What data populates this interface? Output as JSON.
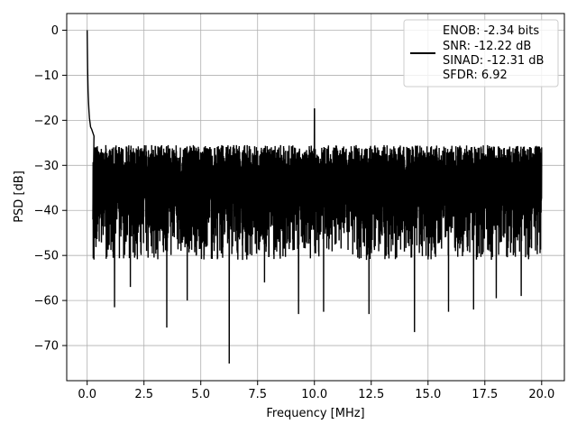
{
  "chart_data": {
    "type": "line",
    "xlabel": "Frequency [MHz]",
    "ylabel": "PSD [dB]",
    "xlim": [
      -0.9,
      21.0
    ],
    "ylim": [
      -77.8,
      3.7
    ],
    "xticks": [
      0.0,
      2.5,
      5.0,
      7.5,
      10.0,
      12.5,
      15.0,
      17.5,
      20.0
    ],
    "xtick_labels": [
      "0.0",
      "2.5",
      "5.0",
      "7.5",
      "10.0",
      "12.5",
      "15.0",
      "17.5",
      "20.0"
    ],
    "yticks": [
      0,
      -10,
      -20,
      -30,
      -40,
      -50,
      -60,
      -70
    ],
    "ytick_labels": [
      "0",
      "−10",
      "−20",
      "−30",
      "−40",
      "−50",
      "−60",
      "−70"
    ],
    "grid": true,
    "legend_position": "top-right",
    "legend_entries": [
      "ENOB: -2.34 bits",
      "SNR: -12.22 dB",
      "SINAD: -12.31 dB",
      "SFDR: 6.92"
    ],
    "line_color": "#000000",
    "series": [
      {
        "points_x": [
          0.0,
          0.02,
          0.04,
          0.06,
          0.08,
          0.1,
          0.15,
          0.2,
          0.3,
          0.5,
          10.0,
          20.0
        ],
        "points_y": [
          0.0,
          -8.5,
          -13.5,
          -16.0,
          -18.0,
          -19.5,
          -21.5,
          -22.0,
          -23.5,
          -24.0,
          -17.5,
          -26.0
        ],
        "noise_floor_top": -24.5,
        "noise_floor_median": -33.0,
        "deep_dips": [
          {
            "x": 0.2,
            "y": -42.0
          },
          {
            "x": 1.2,
            "y": -61.5
          },
          {
            "x": 1.9,
            "y": -57.0
          },
          {
            "x": 3.5,
            "y": -66.0
          },
          {
            "x": 4.4,
            "y": -60.0
          },
          {
            "x": 6.25,
            "y": -74.0
          },
          {
            "x": 7.8,
            "y": -56.0
          },
          {
            "x": 9.3,
            "y": -63.0
          },
          {
            "x": 10.4,
            "y": -62.5
          },
          {
            "x": 12.4,
            "y": -63.0
          },
          {
            "x": 14.4,
            "y": -67.0
          },
          {
            "x": 15.9,
            "y": -62.5
          },
          {
            "x": 17.0,
            "y": -62.0
          },
          {
            "x": 18.0,
            "y": -59.5
          },
          {
            "x": 19.1,
            "y": -59.0
          }
        ]
      }
    ]
  }
}
